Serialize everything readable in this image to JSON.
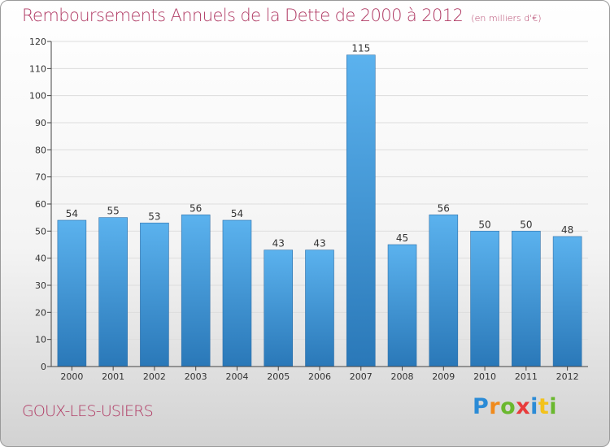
{
  "title": "Remboursements Annuels de la Dette de 2000 à 2012",
  "unit_note": "(en milliers d'€)",
  "commune": "GOUX-LES-USIERS",
  "logo": {
    "letters": [
      "P",
      "r",
      "o",
      "x",
      "i",
      "t",
      "i"
    ],
    "colors": [
      "#2b8bd6",
      "#f08a1c",
      "#6ab82e",
      "#e83b3b",
      "#2b8bd6",
      "#f3c21b",
      "#6ab82e"
    ]
  },
  "colors": {
    "bar_light": "#5bb2ee",
    "bar_dark": "#2a78b8",
    "title": "#b03a64",
    "axis": "#444444"
  },
  "chart_data": {
    "type": "bar",
    "title": "Remboursements Annuels de la Dette de 2000 à 2012",
    "ylabel": "",
    "xlabel": "",
    "categories": [
      "2000",
      "2001",
      "2002",
      "2003",
      "2004",
      "2005",
      "2006",
      "2007",
      "2008",
      "2009",
      "2010",
      "2011",
      "2012"
    ],
    "values": [
      54,
      55,
      53,
      56,
      54,
      43,
      43,
      115,
      45,
      56,
      50,
      50,
      48
    ],
    "ylim": [
      0,
      120
    ],
    "yticks": [
      0,
      10,
      20,
      30,
      40,
      50,
      60,
      70,
      80,
      90,
      100,
      110,
      120
    ],
    "grid": "horizontal",
    "data_labels": true
  }
}
